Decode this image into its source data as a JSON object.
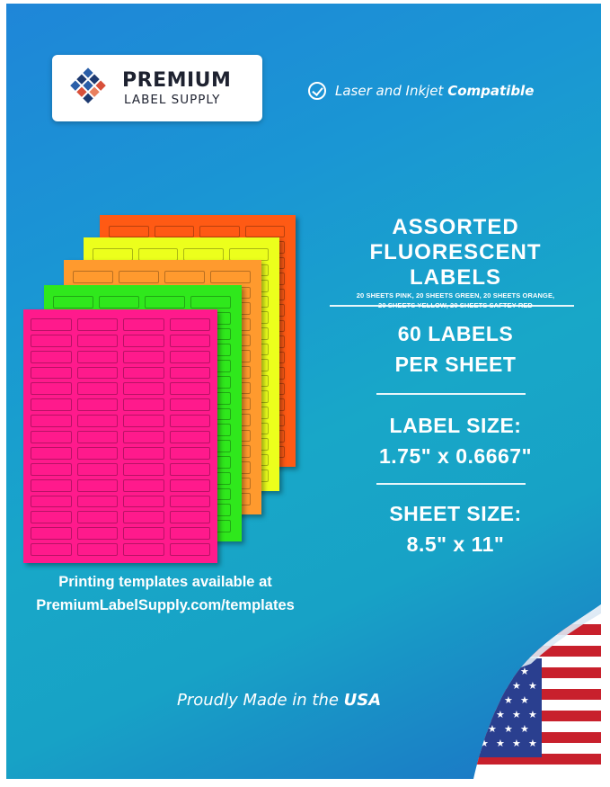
{
  "brand": {
    "line1": "PREMIUM",
    "line2": "LABEL SUPPLY",
    "logo_colors": [
      "#2a5ea8",
      "#d8503a",
      "#1e3a70",
      "#e9805f"
    ]
  },
  "compatibility": {
    "icon": "check-circle-icon",
    "text": "Laser and Inkjet",
    "bold": "Compatible"
  },
  "product": {
    "title_line1": "ASSORTED",
    "title_line2": "FLUORESCENT LABELS",
    "contents_line1": "20 SHEETS PINK, 20 SHEETS GREEN, 20 SHEETS ORANGE,",
    "contents_line2": "20 SHEETS YELLOW, 20 SHEETS SAFTEY RED",
    "labels_line1": "60 LABELS",
    "labels_line2": "PER SHEET",
    "label_size_heading": "LABEL SIZE:",
    "label_size_value": "1.75\" x 0.6667\"",
    "sheet_size_heading": "SHEET SIZE:",
    "sheet_size_value": "8.5\" x 11\""
  },
  "sheets": {
    "colors": [
      "#ff5a14",
      "#ecff1c",
      "#ff9a2e",
      "#2fe81c",
      "#ff1a8c"
    ],
    "labels_per_sheet": 60,
    "columns": 4
  },
  "templates": {
    "line1": "Printing templates available at",
    "line2": "PremiumLabelSupply.com/templates"
  },
  "footer": {
    "text": "Proudly Made in the",
    "bold": "USA",
    "flag_icon": "american-flag-icon"
  }
}
